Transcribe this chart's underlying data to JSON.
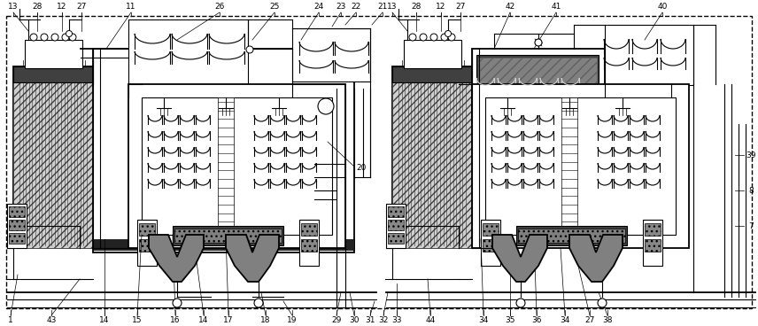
{
  "fig_width": 8.56,
  "fig_height": 3.68,
  "dpi": 100,
  "bg_color": "#ffffff",
  "lc": "#000000",
  "lw_thin": 0.6,
  "lw_med": 1.0,
  "lw_thick": 1.8
}
